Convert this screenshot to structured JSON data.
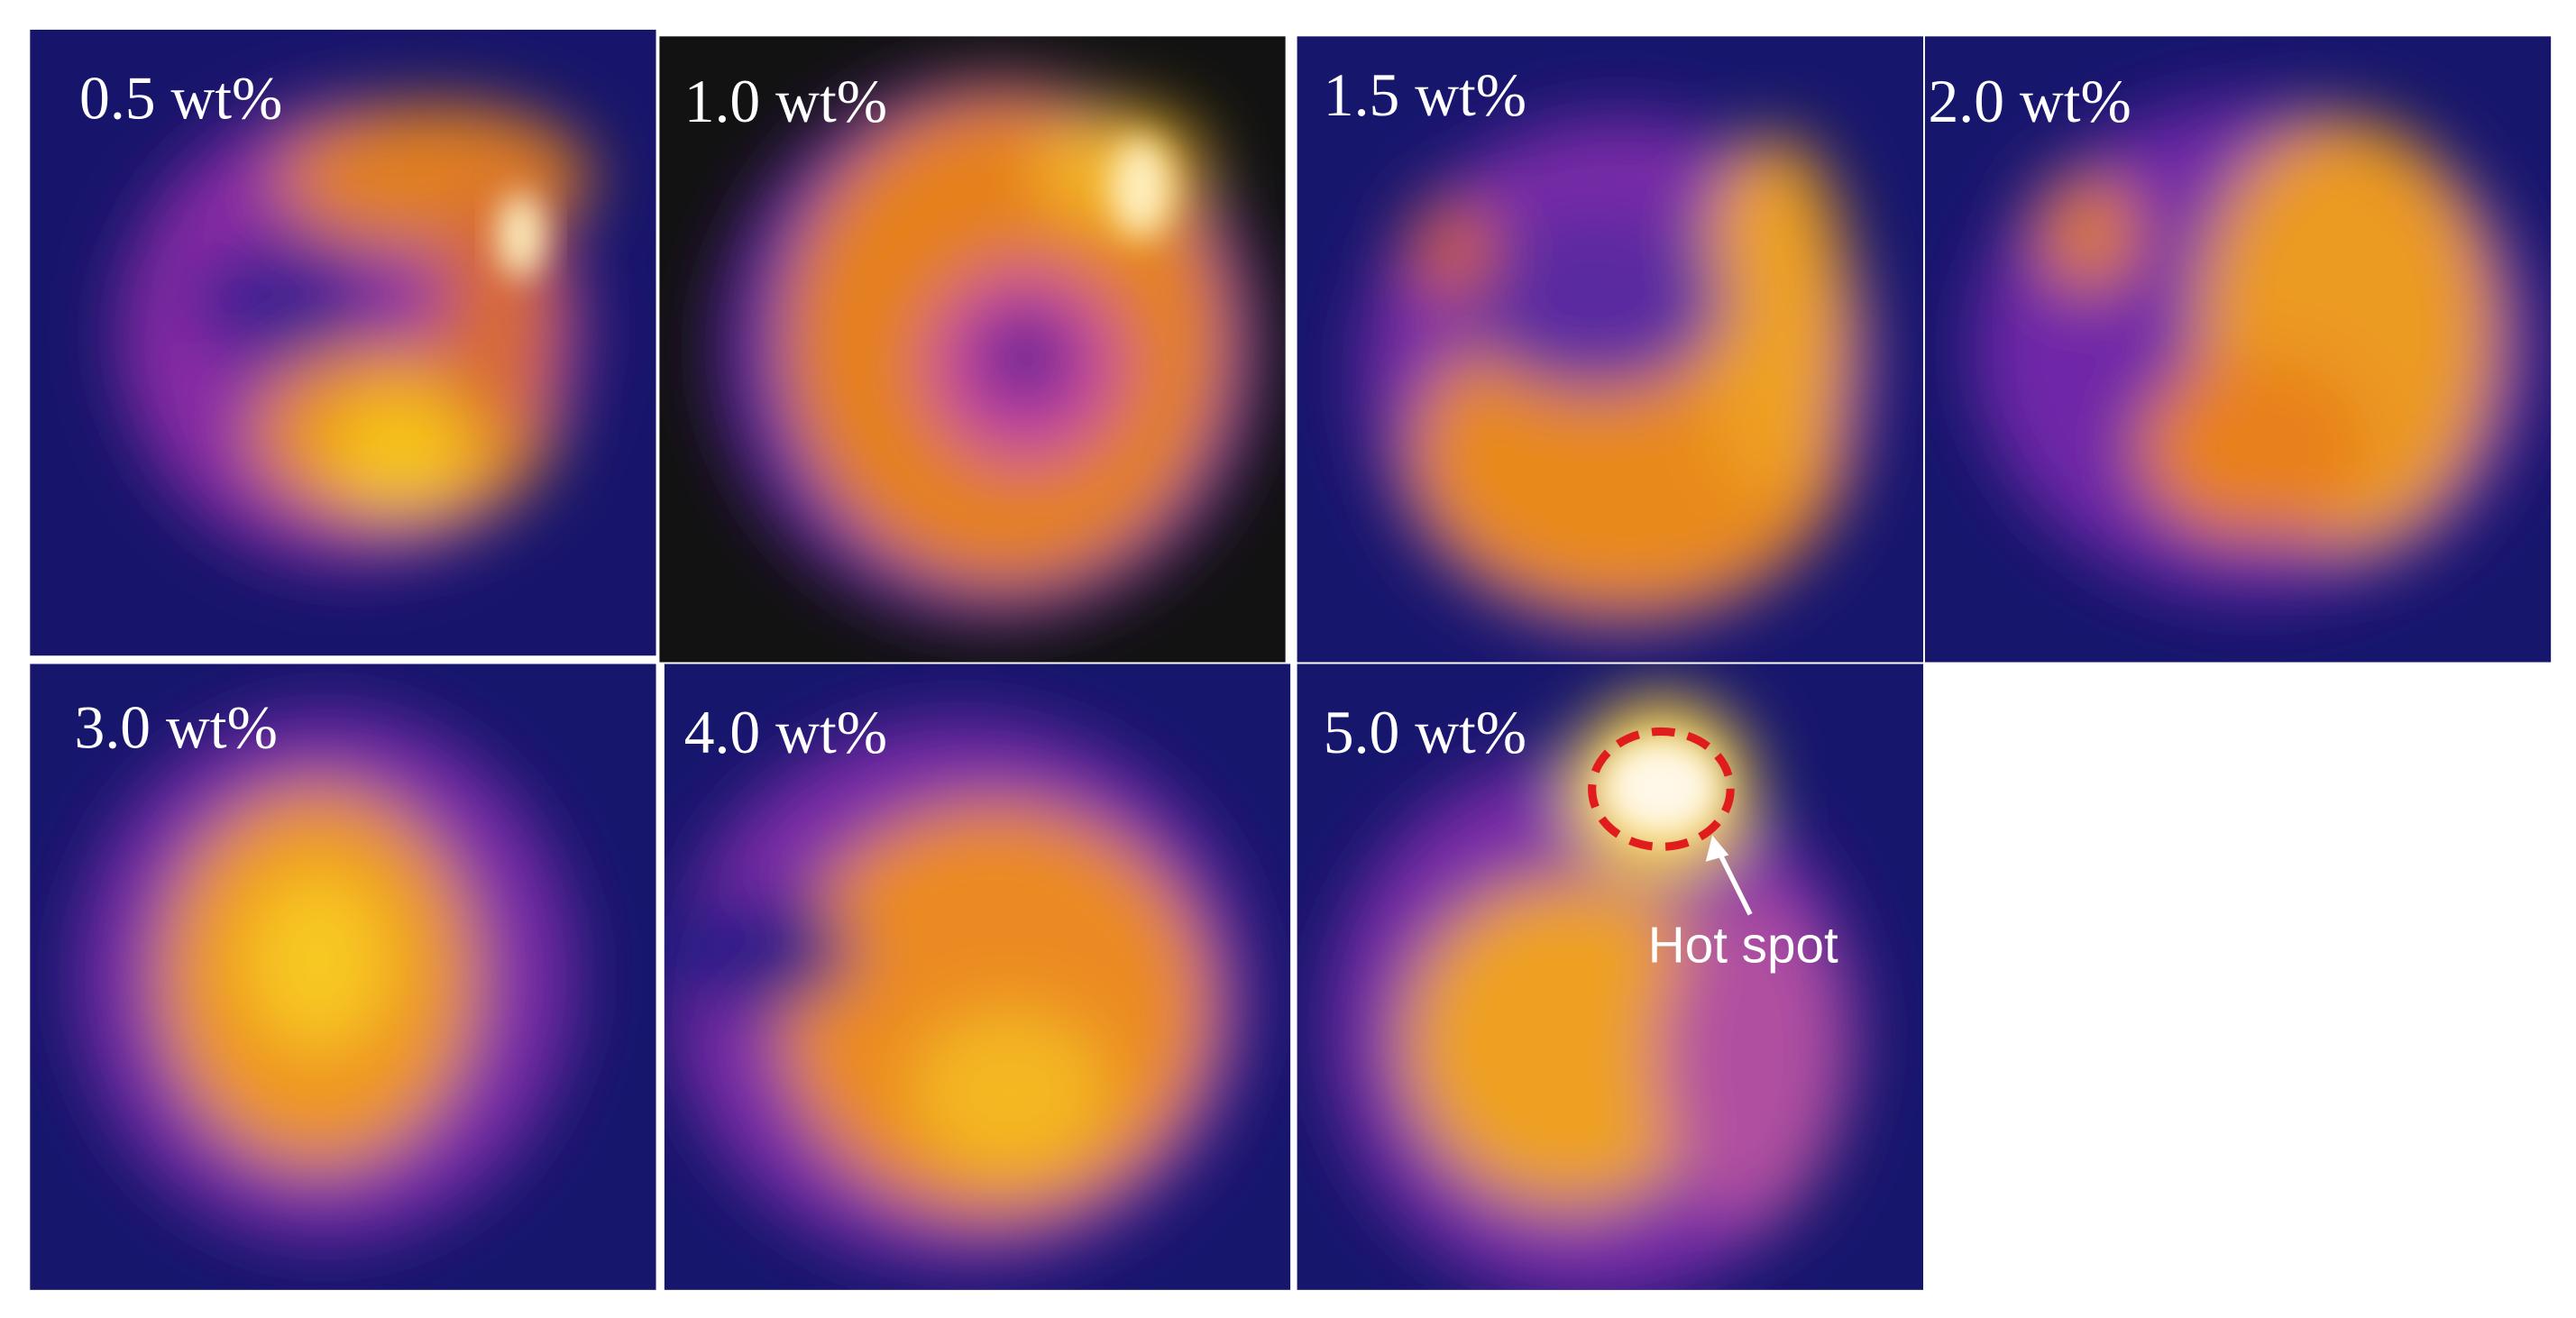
{
  "panels": [
    {
      "label": "0.5 wt%"
    },
    {
      "label": "1.0 wt%"
    },
    {
      "label": "1.5 wt%"
    },
    {
      "label": "2.0 wt%"
    },
    {
      "label": "3.0 wt%"
    },
    {
      "label": "4.0 wt%"
    },
    {
      "label": "5.0 wt%"
    }
  ],
  "annotation": "Hot spot"
}
